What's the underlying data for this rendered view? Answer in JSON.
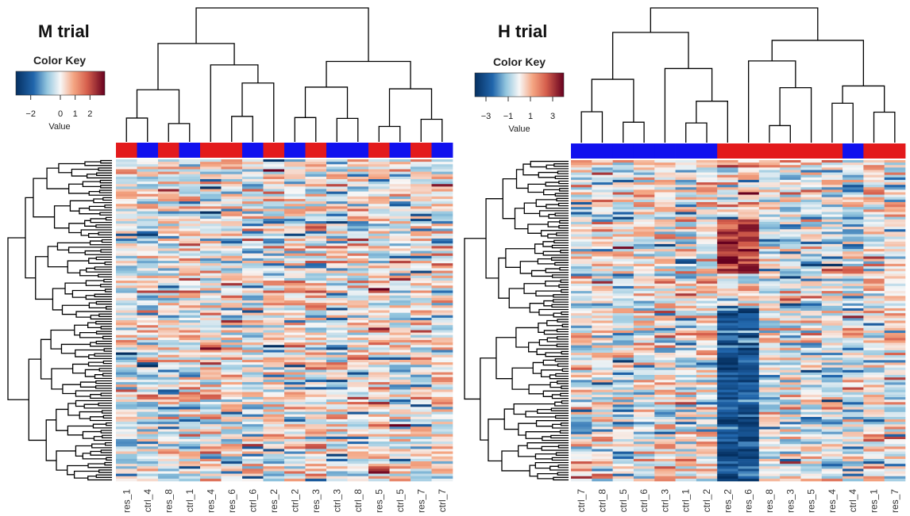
{
  "colors": {
    "ctrl": "#1111ee",
    "res": "#e31a1c",
    "low": "#2166ac",
    "mid": "#f7f7f7",
    "high": "#67001f"
  },
  "chart_data": [
    {
      "type": "heatmap",
      "title": "M trial",
      "color_key": {
        "title": "Color Key",
        "xlabel": "Value",
        "ticks": [
          -2,
          0,
          1,
          2
        ],
        "range": [
          -3,
          3
        ]
      },
      "columns": [
        "res_1",
        "ctrl_4",
        "res_8",
        "ctrl_1",
        "res_4",
        "res_6",
        "ctrl_6",
        "res_2",
        "ctrl_2",
        "res_3",
        "ctrl_3",
        "ctrl_8",
        "res_5",
        "ctrl_5",
        "res_7",
        "ctrl_7"
      ],
      "row_count": 130
    },
    {
      "type": "heatmap",
      "title": "H trial",
      "color_key": {
        "title": "Color Key",
        "xlabel": "Value",
        "ticks": [
          -3,
          -1,
          1,
          3
        ],
        "range": [
          -4,
          4
        ]
      },
      "columns": [
        "ctrl_7",
        "ctrl_8",
        "ctrl_5",
        "ctrl_6",
        "ctrl_3",
        "ctrl_1",
        "ctrl_2",
        "res_2",
        "res_6",
        "res_8",
        "res_3",
        "res_5",
        "res_4",
        "ctrl_4",
        "res_1",
        "res_7"
      ],
      "row_count": 130
    }
  ]
}
